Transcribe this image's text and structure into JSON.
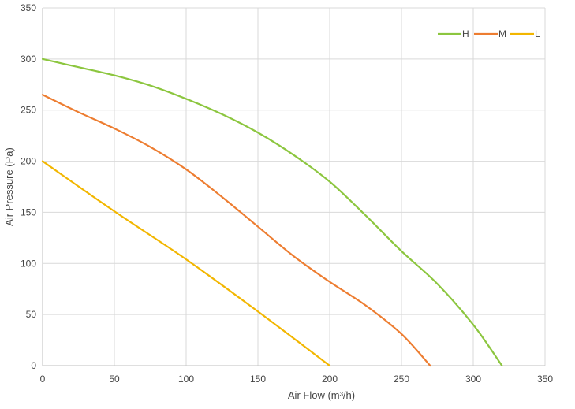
{
  "chart_data": {
    "type": "line",
    "title": "",
    "xlabel": "Air Flow  (m³/h)",
    "ylabel": "Air Pressure  (Pa)",
    "xlim": [
      0,
      350
    ],
    "ylim": [
      0,
      350
    ],
    "xticks": [
      0,
      50,
      100,
      150,
      200,
      250,
      300,
      350
    ],
    "yticks": [
      0,
      50,
      100,
      150,
      200,
      250,
      300,
      350
    ],
    "grid": true,
    "legend": "top-right",
    "series": [
      {
        "name": "H",
        "color": "#8cc63f",
        "x": [
          0,
          25,
          50,
          75,
          100,
          125,
          150,
          175,
          200,
          225,
          250,
          275,
          300,
          320
        ],
        "y": [
          300,
          292,
          284,
          274,
          261,
          246,
          228,
          206,
          180,
          147,
          112,
          80,
          40,
          0
        ]
      },
      {
        "name": "M",
        "color": "#ed7d31",
        "x": [
          0,
          25,
          50,
          75,
          100,
          125,
          150,
          175,
          200,
          225,
          250,
          270
        ],
        "y": [
          265,
          248,
          232,
          214,
          192,
          165,
          136,
          107,
          82,
          59,
          31,
          0
        ]
      },
      {
        "name": "L",
        "color": "#f2b600",
        "x": [
          0,
          50,
          100,
          150,
          200
        ],
        "y": [
          200,
          151,
          104,
          53,
          0
        ]
      }
    ]
  }
}
